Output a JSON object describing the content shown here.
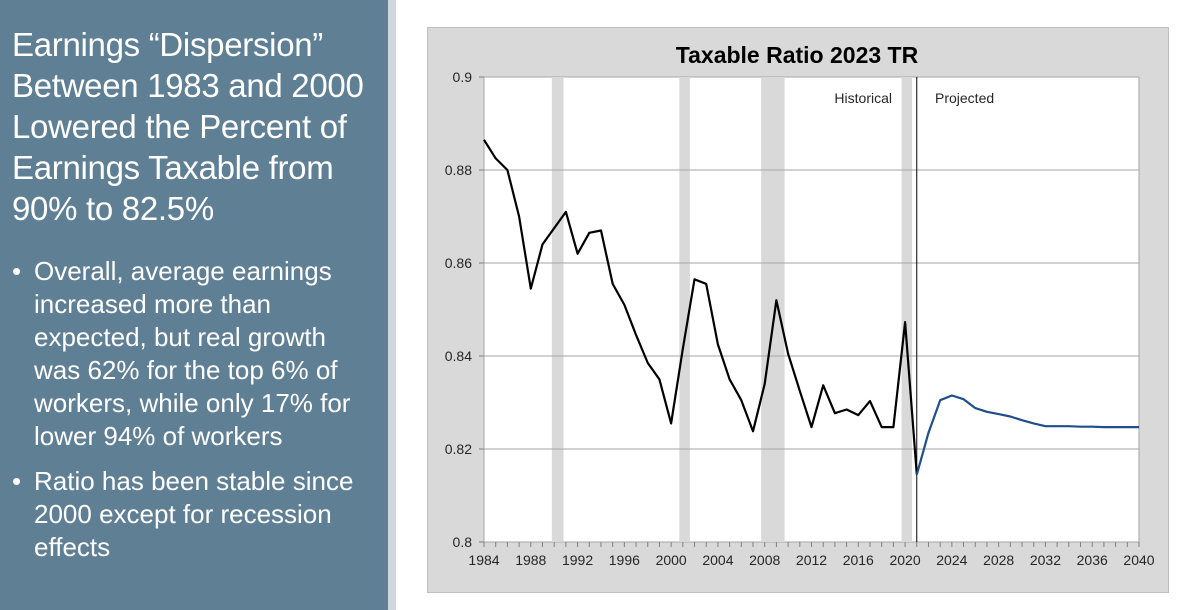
{
  "slide": {
    "title": "Earnings “Dispersion” Between 1983 and 2000 Lowered the  Percent of Earnings Taxable from 90% to 82.5%",
    "bullets": [
      "Overall, average earnings increased more than expected, but real growth was 62% for the top 6% of workers, while only 17% for lower 94% of workers",
      "Ratio has been stable since 2000 except for recession effects"
    ]
  },
  "chart_data": {
    "type": "line",
    "title": "Taxable Ratio 2023 TR",
    "xlabel": "",
    "ylabel": "",
    "xlim": [
      1984,
      2040
    ],
    "ylim": [
      0.8,
      0.9
    ],
    "x_ticks": [
      1984,
      1988,
      1992,
      1996,
      2000,
      2004,
      2008,
      2012,
      2016,
      2020,
      2024,
      2028,
      2032,
      2036,
      2040
    ],
    "y_ticks": [
      0.8,
      0.82,
      0.84,
      0.86,
      0.88,
      0.9
    ],
    "y_tick_labels": [
      "0.8",
      "0.82",
      "0.84",
      "0.86",
      "0.88",
      "0.9"
    ],
    "grid": "horizontal",
    "recession_bands": [
      [
        1989.8,
        1990.8
      ],
      [
        2000.7,
        2001.6
      ],
      [
        2007.7,
        2009.7
      ],
      [
        2019.7,
        2020.6
      ]
    ],
    "divider_year": 2021,
    "annotations": [
      "Historical",
      "Projected"
    ],
    "colors": {
      "historical": "#000000",
      "projected": "#1f4e8c",
      "band": "#d9d9d9"
    },
    "series": [
      {
        "segment": "historical",
        "x": [
          1984,
          1985,
          1986,
          1987,
          1988,
          1989,
          1990,
          1991,
          1992,
          1993,
          1994,
          1995,
          1996,
          1997,
          1998,
          1999,
          2000,
          2001,
          2002,
          2003,
          2004,
          2005,
          2006,
          2007,
          2008,
          2009,
          2010,
          2011,
          2012,
          2013,
          2014,
          2015,
          2016,
          2017,
          2018,
          2019,
          2020,
          2021
        ],
        "y": [
          0.8865,
          0.8825,
          0.88,
          0.87,
          0.8545,
          0.864,
          0.8675,
          0.871,
          0.862,
          0.8665,
          0.867,
          0.8555,
          0.851,
          0.8445,
          0.8385,
          0.835,
          0.8255,
          0.8415,
          0.8565,
          0.8555,
          0.8425,
          0.835,
          0.8305,
          0.8238,
          0.834,
          0.852,
          0.8405,
          0.8325,
          0.8247,
          0.8337,
          0.8277,
          0.8285,
          0.8273,
          0.8303,
          0.8247,
          0.8247,
          0.8473,
          0.8145
        ]
      },
      {
        "segment": "projected",
        "x": [
          2021,
          2022,
          2023,
          2024,
          2025,
          2026,
          2027,
          2028,
          2029,
          2030,
          2031,
          2032,
          2033,
          2034,
          2035,
          2036,
          2037,
          2038,
          2039,
          2040
        ],
        "y": [
          0.8145,
          0.8235,
          0.8305,
          0.8315,
          0.8307,
          0.8288,
          0.828,
          0.8275,
          0.827,
          0.8262,
          0.8255,
          0.8249,
          0.8249,
          0.8249,
          0.8248,
          0.8248,
          0.8247,
          0.8247,
          0.8247,
          0.8247
        ]
      }
    ]
  }
}
